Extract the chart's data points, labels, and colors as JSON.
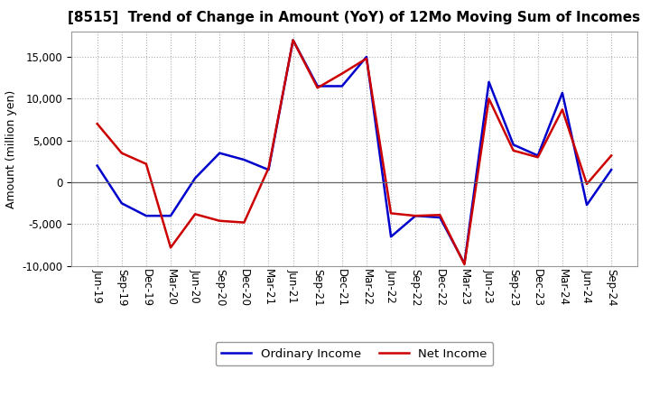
{
  "title": "[8515]  Trend of Change in Amount (YoY) of 12Mo Moving Sum of Incomes",
  "ylabel": "Amount (million yen)",
  "labels": [
    "Jun-19",
    "Sep-19",
    "Dec-19",
    "Mar-20",
    "Jun-20",
    "Sep-20",
    "Dec-20",
    "Mar-21",
    "Jun-21",
    "Sep-21",
    "Dec-21",
    "Mar-22",
    "Jun-22",
    "Sep-22",
    "Dec-22",
    "Mar-23",
    "Jun-23",
    "Sep-23",
    "Dec-23",
    "Mar-24",
    "Jun-24",
    "Sep-24"
  ],
  "ordinary_income": [
    2000,
    -2500,
    -4000,
    -4000,
    500,
    3500,
    2700,
    1500,
    17000,
    11500,
    11500,
    15000,
    -6500,
    -4000,
    -4200,
    -9700,
    12000,
    4500,
    3200,
    10700,
    -2700,
    1500
  ],
  "net_income": [
    7000,
    3500,
    2200,
    -7800,
    -3800,
    -4600,
    -4800,
    1700,
    17000,
    11300,
    13000,
    14800,
    -3700,
    -4000,
    -3900,
    -9800,
    10000,
    3800,
    3000,
    8700,
    -200,
    3200
  ],
  "ordinary_income_color": "#0000cc",
  "net_income_color": "#cc0000",
  "ylim": [
    -10000,
    18000
  ],
  "yticks": [
    -10000,
    -5000,
    0,
    5000,
    10000,
    15000
  ],
  "bg_color": "#ffffff",
  "grid_color": "#b0b0b0",
  "legend_labels": [
    "Ordinary Income",
    "Net Income"
  ],
  "title_fontsize": 11,
  "ylabel_fontsize": 9,
  "tick_fontsize": 8.5,
  "linewidth": 1.8
}
